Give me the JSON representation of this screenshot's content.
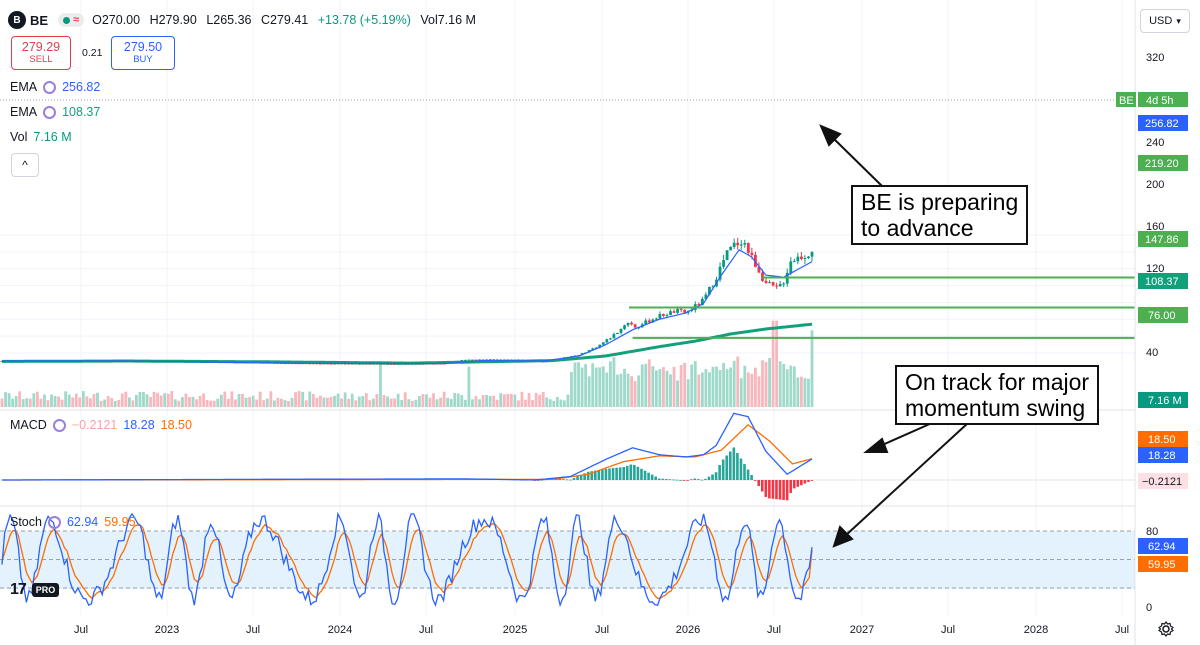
{
  "header": {
    "logo_text": "B",
    "symbol": "BE",
    "open": "O270.00",
    "high": "H279.90",
    "low": "L265.36",
    "close": "C279.41",
    "change": "+13.78 (+5.19%)",
    "volume": "Vol7.16 M"
  },
  "trade": {
    "sell_price": "279.29",
    "sell_label": "SELL",
    "spread": "0.21",
    "buy_price": "279.50",
    "buy_label": "BUY"
  },
  "legend": {
    "ema1_name": "EMA",
    "ema1_value": "256.82",
    "ema2_name": "EMA",
    "ema2_value": "108.37",
    "vol_name": "Vol",
    "vol_value": "7.16 M",
    "macd_name": "MACD",
    "macd_hist": "−0.2121",
    "macd_line": "18.28",
    "macd_signal": "18.50",
    "stoch_name": "Stoch",
    "stoch_k": "62.94",
    "stoch_d": "59.95"
  },
  "currency": "USD",
  "tv_logo": {
    "mark": "17",
    "badge": "PRO"
  },
  "annotations": {
    "a1_line1": "BE is preparing",
    "a1_line2": "to advance",
    "a2_line1": "On track for major",
    "a2_line2": "momentum swing"
  },
  "colors": {
    "up": "#089981",
    "down": "#f23645",
    "ema_fast": "#2962ff",
    "ema_slow": "#12a07a",
    "macd_line": "#2962ff",
    "macd_signal": "#ff6d00",
    "stoch_k": "#2962ff",
    "stoch_d": "#ff6d00",
    "hline": "#4caf50",
    "stoch_band": "#e3f2fd"
  },
  "chart_data": {
    "type": "candlestick",
    "price_axis": {
      "scale": "linear",
      "ticks": [
        40,
        80,
        120,
        160,
        200,
        240,
        320
      ]
    },
    "time_axis": {
      "labels": [
        "Jul",
        "2023",
        "Jul",
        "2024",
        "Jul",
        "2025",
        "Jul",
        "2026",
        "Jul",
        "2027",
        "Jul",
        "2028",
        "Jul"
      ]
    },
    "price_labels": {
      "symbol_tag": "BE",
      "countdown": "4d 5h",
      "ema_fast": "256.82",
      "level_1": "219.20",
      "level_2": "147.86",
      "ema_slow": "108.37",
      "level_3": "76.00",
      "volume": "7.16 M"
    },
    "horizontal_levels": [
      219.2,
      147.86,
      76.0
    ],
    "price_path": [
      [
        2022.3,
        21
      ],
      [
        2022.5,
        22
      ],
      [
        2022.7,
        23
      ],
      [
        2022.9,
        22
      ],
      [
        2023.0,
        21
      ],
      [
        2023.3,
        20
      ],
      [
        2023.6,
        18
      ],
      [
        2023.9,
        16
      ],
      [
        2024.2,
        15
      ],
      [
        2024.5,
        14
      ],
      [
        2024.8,
        15
      ],
      [
        2024.9,
        24
      ],
      [
        2025.0,
        25
      ],
      [
        2025.2,
        24
      ],
      [
        2025.35,
        19
      ],
      [
        2025.45,
        28
      ],
      [
        2025.55,
        36
      ],
      [
        2025.65,
        55
      ],
      [
        2025.72,
        75
      ],
      [
        2025.78,
        95
      ],
      [
        2025.82,
        115
      ],
      [
        2025.87,
        100
      ],
      [
        2025.92,
        112
      ],
      [
        2026.0,
        128
      ],
      [
        2026.1,
        140
      ],
      [
        2026.15,
        135
      ],
      [
        2026.25,
        165
      ],
      [
        2026.32,
        220
      ],
      [
        2026.38,
        275
      ],
      [
        2026.42,
        295
      ],
      [
        2026.47,
        310
      ],
      [
        2026.5,
        282
      ],
      [
        2026.55,
        245
      ],
      [
        2026.6,
        205
      ],
      [
        2026.66,
        192
      ],
      [
        2026.7,
        210
      ],
      [
        2026.74,
        260
      ],
      [
        2026.8,
        270
      ],
      [
        2026.86,
        279.41
      ]
    ],
    "ema_fast_path": [
      [
        2022.3,
        21
      ],
      [
        2023.0,
        21
      ],
      [
        2024.0,
        15.5
      ],
      [
        2024.8,
        15
      ],
      [
        2025.0,
        22
      ],
      [
        2025.35,
        21
      ],
      [
        2025.55,
        33
      ],
      [
        2025.7,
        60
      ],
      [
        2025.85,
        95
      ],
      [
        2026.0,
        120
      ],
      [
        2026.15,
        135
      ],
      [
        2026.25,
        158
      ],
      [
        2026.35,
        225
      ],
      [
        2026.45,
        285
      ],
      [
        2026.52,
        268
      ],
      [
        2026.6,
        225
      ],
      [
        2026.7,
        220
      ],
      [
        2026.86,
        256.82
      ]
    ],
    "ema_slow_path": [
      [
        2022.3,
        20
      ],
      [
        2023.0,
        21
      ],
      [
        2023.8,
        19
      ],
      [
        2024.6,
        16
      ],
      [
        2025.0,
        19
      ],
      [
        2025.4,
        22
      ],
      [
        2025.7,
        33
      ],
      [
        2026.0,
        55
      ],
      [
        2026.2,
        68
      ],
      [
        2026.4,
        85
      ],
      [
        2026.6,
        97
      ],
      [
        2026.86,
        108.37
      ]
    ],
    "volume_spikes": [
      [
        2024.43,
        0.45
      ],
      [
        2024.93,
        0.42
      ],
      [
        2026.65,
        0.9
      ],
      [
        2026.86,
        0.8
      ]
    ],
    "macd_path": [
      [
        2022.3,
        0
      ],
      [
        2024.9,
        1
      ],
      [
        2025.3,
        0
      ],
      [
        2025.5,
        3
      ],
      [
        2025.7,
        18
      ],
      [
        2025.85,
        28
      ],
      [
        2026.0,
        22
      ],
      [
        2026.15,
        20
      ],
      [
        2026.25,
        22
      ],
      [
        2026.32,
        30
      ],
      [
        2026.42,
        58
      ],
      [
        2026.5,
        55
      ],
      [
        2026.6,
        25
      ],
      [
        2026.72,
        5
      ],
      [
        2026.86,
        18.28
      ]
    ],
    "macd_signal_path": [
      [
        2022.3,
        0
      ],
      [
        2024.9,
        0.5
      ],
      [
        2025.4,
        0.5
      ],
      [
        2025.6,
        5
      ],
      [
        2025.8,
        16
      ],
      [
        2026.0,
        21
      ],
      [
        2026.2,
        20
      ],
      [
        2026.35,
        26
      ],
      [
        2026.5,
        48
      ],
      [
        2026.62,
        34
      ],
      [
        2026.75,
        14
      ],
      [
        2026.86,
        18.5
      ]
    ],
    "stoch_levels": [
      20,
      50,
      80
    ],
    "stoch_ticks": [
      0,
      80
    ]
  }
}
